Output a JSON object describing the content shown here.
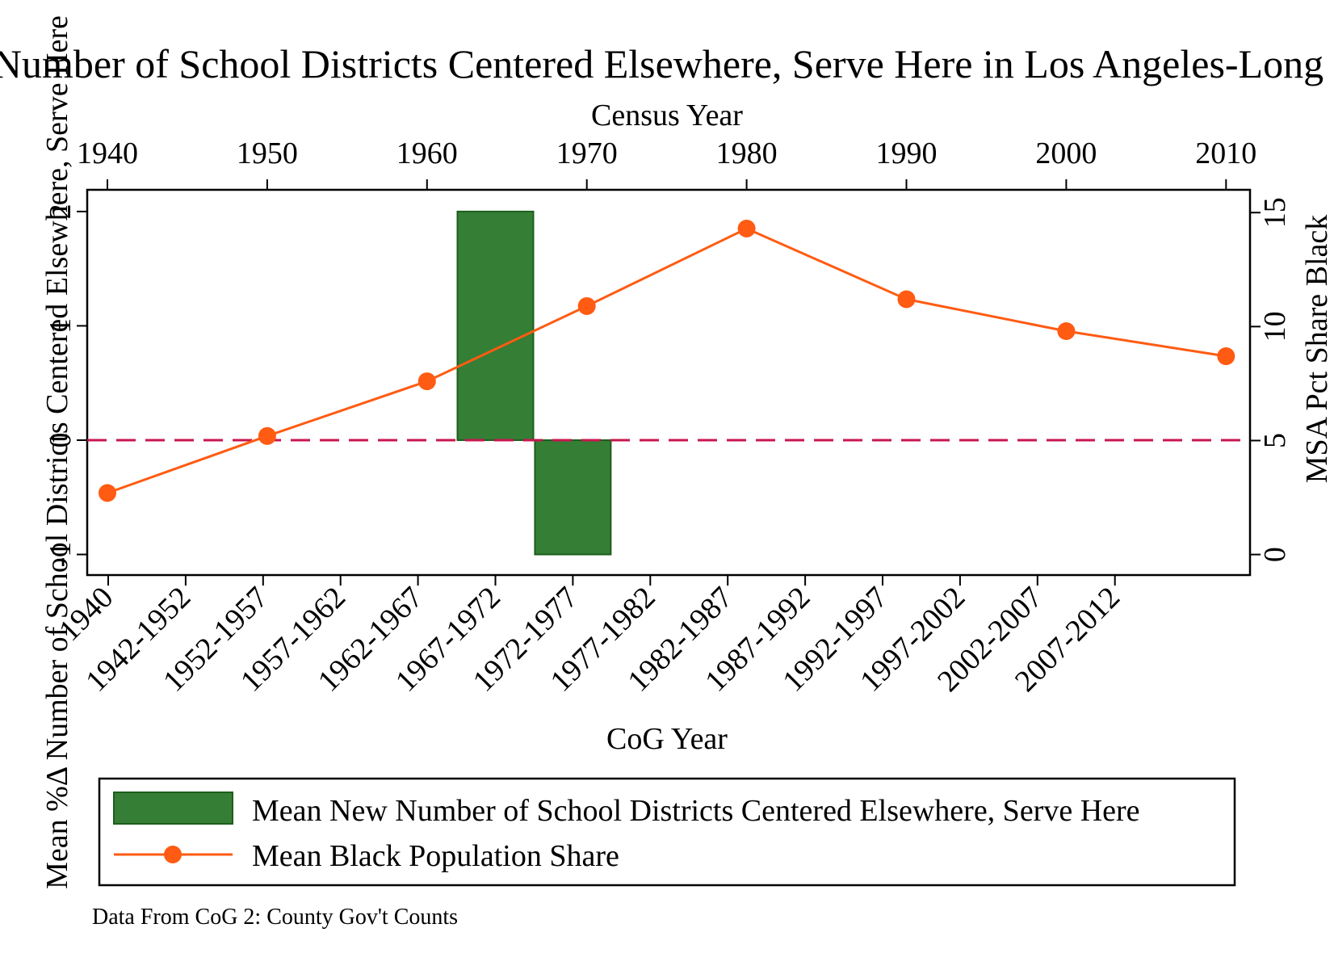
{
  "chart_data": {
    "type": "bar",
    "title": "Mean %Δ Number of School Districts Centered Elsewhere, Serve Here in Los Angeles-Long Beach, CA",
    "top_axis": {
      "label": "Census Year",
      "ticks": [
        "1940",
        "1950",
        "1960",
        "1970",
        "1980",
        "1990",
        "2000",
        "2010"
      ]
    },
    "xlabel": "CoG Year",
    "categories": [
      "1940",
      "1942-1952",
      "1952-1957",
      "1957-1962",
      "1962-1967",
      "1967-1972",
      "1972-1977",
      "1977-1982",
      "1982-1987",
      "1987-1992",
      "1992-1997",
      "1997-2002",
      "2002-2007",
      "2007-2012"
    ],
    "ylabel_left": "Mean %Δ Number of School Districts Centered Elsewhere, Serve Here",
    "ylabel_right": "MSA Pct Share Black",
    "left_ticks": [
      -1,
      0,
      1,
      2
    ],
    "left_tick_labels": [
      "-1",
      "0",
      "1",
      "2"
    ],
    "right_ticks": [
      0,
      5,
      10,
      15
    ],
    "right_tick_labels": [
      "0",
      "5",
      "10",
      "15"
    ],
    "ylim_left": [
      -1.18,
      2.19
    ],
    "ylim_right": [
      -0.9,
      16.0
    ],
    "series": [
      {
        "name": "Mean New Number of School Districts Centered Elsewhere, Serve Here",
        "type": "bar",
        "axis": "left",
        "color": "#357e35",
        "bars": [
          {
            "category": "1967-1972",
            "value": 2.0
          },
          {
            "category": "1972-1977",
            "value": -1.0
          }
        ]
      },
      {
        "name": "Mean Black Population Share",
        "type": "line",
        "axis": "right",
        "color": "#ff5b12",
        "x": [
          1940,
          1950,
          1960,
          1970,
          1980,
          1990,
          2000,
          2010
        ],
        "values": [
          2.7,
          5.2,
          7.6,
          10.9,
          14.3,
          11.2,
          9.8,
          8.7
        ]
      }
    ],
    "reference_line": {
      "axis": "left",
      "value": 0,
      "style": "dashed",
      "color": "#c8174f"
    },
    "legend": {
      "placement": "bottom"
    },
    "note": "Data From CoG 2: County Gov't Counts"
  }
}
